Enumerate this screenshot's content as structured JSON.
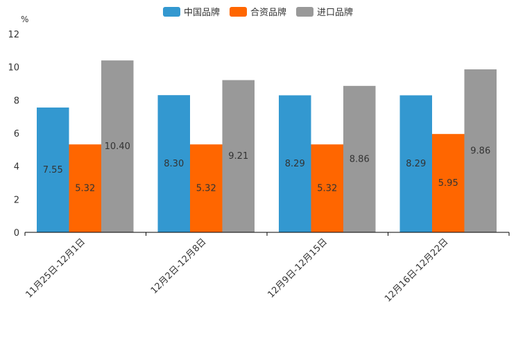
{
  "chart_data": {
    "type": "bar",
    "unit": "%",
    "categories": [
      "11月25日-12月1日",
      "12月2日-12月8日",
      "12月9日-12月15日",
      "12月16日-12月22日"
    ],
    "series": [
      {
        "name": "中国品牌",
        "color": "#3398D0",
        "values": [
          7.55,
          8.3,
          8.29,
          8.29
        ],
        "labels": [
          "7.55",
          "8.30",
          "8.29",
          "8.29"
        ]
      },
      {
        "name": "合资品牌",
        "color": "#FF6600",
        "values": [
          5.32,
          5.32,
          5.32,
          5.95
        ],
        "labels": [
          "5.32",
          "5.32",
          "5.32",
          "5.95"
        ]
      },
      {
        "name": "进口品牌",
        "color": "#999999",
        "values": [
          10.4,
          9.21,
          8.86,
          9.86
        ],
        "labels": [
          "10.40",
          "9.21",
          "8.86",
          "9.86"
        ]
      }
    ],
    "yticks": [
      "0",
      "2",
      "4",
      "6",
      "8",
      "10",
      "12"
    ],
    "ylim": [
      0,
      12
    ],
    "legend_position": "top-center"
  }
}
